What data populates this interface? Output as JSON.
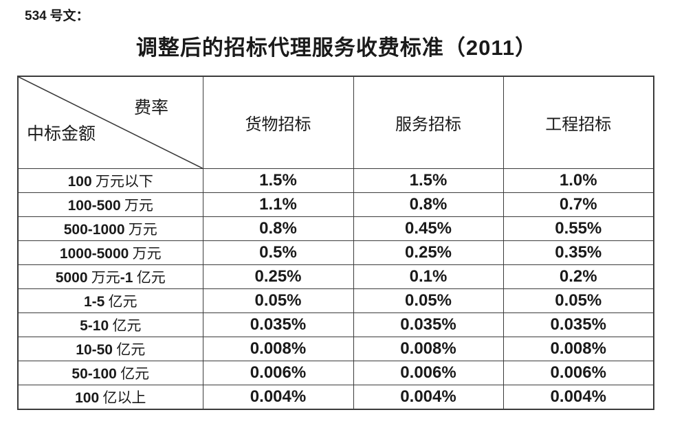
{
  "page": {
    "doc_label": "534 号文：",
    "title": "调整后的招标代理服务收费标准（2011）"
  },
  "table": {
    "corner": {
      "top_right": "费率",
      "bottom_left": "中标金额"
    },
    "columns": [
      "货物招标",
      "服务招标",
      "工程招标"
    ],
    "rows": [
      {
        "label": "100 万元以下",
        "values": [
          "1.5%",
          "1.5%",
          "1.0%"
        ]
      },
      {
        "label": "100-500 万元",
        "values": [
          "1.1%",
          "0.8%",
          "0.7%"
        ]
      },
      {
        "label": "500-1000 万元",
        "values": [
          "0.8%",
          "0.45%",
          "0.55%"
        ]
      },
      {
        "label": "1000-5000 万元",
        "values": [
          "0.5%",
          "0.25%",
          "0.35%"
        ]
      },
      {
        "label": "5000 万元-1 亿元",
        "values": [
          "0.25%",
          "0.1%",
          "0.2%"
        ]
      },
      {
        "label": "1-5 亿元",
        "values": [
          "0.05%",
          "0.05%",
          "0.05%"
        ]
      },
      {
        "label": "5-10 亿元",
        "values": [
          "0.035%",
          "0.035%",
          "0.035%"
        ]
      },
      {
        "label": "10-50 亿元",
        "values": [
          "0.008%",
          "0.008%",
          "0.008%"
        ]
      },
      {
        "label": "50-100 亿元",
        "values": [
          "0.006%",
          "0.006%",
          "0.006%"
        ]
      },
      {
        "label": "100 亿以上",
        "values": [
          "0.004%",
          "0.004%",
          "0.004%"
        ]
      }
    ]
  },
  "colors": {
    "text": "#1a1a1a",
    "border": "#3a3a3a",
    "background": "#ffffff"
  }
}
